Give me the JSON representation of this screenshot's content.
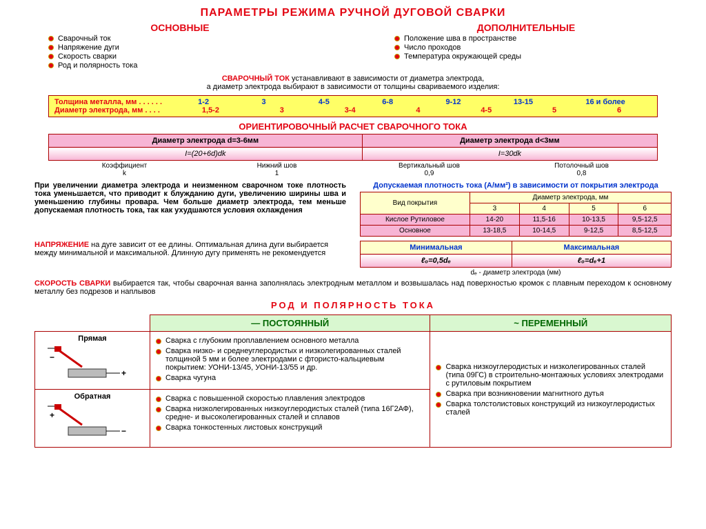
{
  "title": "ПАРАМЕТРЫ РЕЖИМА РУЧНОЙ ДУГОВОЙ СВАРКИ",
  "main": {
    "head": "ОСНОВНЫЕ",
    "items": [
      "Сварочный ток",
      "Напряжение дуги",
      "Скорость сварки",
      "Род и полярность тока"
    ]
  },
  "extra": {
    "head": "ДОПОЛНИТЕЛЬНЫЕ",
    "items": [
      "Положение шва в пространстве",
      "Число проходов",
      "Температура окружающей среды"
    ]
  },
  "intro": {
    "lead": "СВАРОЧНЫЙ ТОК",
    "rest1": " устанавливают в зависимости от диаметра электрода,",
    "rest2": "а диаметр электрода выбирают в зависимости от толщины свариваемого изделия:"
  },
  "yellow": {
    "r1label": "Толщина металла, мм . . . . . .",
    "r1": [
      "1-2",
      "3",
      "4-5",
      "6-8",
      "9-12",
      "13-15",
      "16 и более"
    ],
    "r2label": "Диаметр электрода, мм . . . .",
    "r2": [
      "1,5-2",
      "3",
      "3-4",
      "4",
      "4-5",
      "5",
      "6"
    ]
  },
  "calc_title": "ОРИЕНТИРОВОЧНЫЙ РАСЧЕТ СВАРОЧНОГО ТОКА",
  "pink": {
    "h1": "Диаметр электрода d=3-6мм",
    "h2": "Диаметр электрода d<3мм",
    "f1": "I=(20+6d)dk",
    "f2": "I=30dk"
  },
  "coef": {
    "c1": "Коэффициент\nk",
    "c2": "Нижний шов\n1",
    "c3": "Вертикальный шов\n0,9",
    "c4": "Потолочный шов\n0,8"
  },
  "mid_para": "При увеличении диаметра электрода и неизменном сварочном токе плотность тока уменьшается, что приводит к блужданию дуги, увеличению ширины шва и уменьшению глубины провара. Чем больше диаметр электрода, тем меньше допускаемая плотность тока, так как ухудшаются условия охлаждения",
  "dens": {
    "title": "Допускаемая плотность тока (А/мм²) в зависимости от покрытия электрода",
    "col_head": "Вид покрытия",
    "diam_head": "Диаметр электрода, мм",
    "cols": [
      "3",
      "4",
      "5",
      "6"
    ],
    "rows": [
      {
        "n": "Кислое Рутиловое",
        "v": [
          "14-20",
          "11,5-16",
          "10-13,5",
          "9,5-12,5"
        ]
      },
      {
        "n": "Основное",
        "v": [
          "13-18,5",
          "10-14,5",
          "9-12,5",
          "8,5-12,5"
        ]
      }
    ]
  },
  "volt": {
    "lead": "НАПРЯЖЕНИЕ",
    "text": " на дуге зависит от ее длины. Оптимальная длина дуги выбирается между минимальной и максимальной. Длинную дугу применять не рекомендуется"
  },
  "arc": {
    "h1": "Минимальная",
    "h2": "Максимальная",
    "f1": "ℓₒ=0,5dₑ",
    "f2": "ℓₒ=dₑ+1",
    "note": "dₑ - диаметр электрода (мм)"
  },
  "speed": {
    "lead": "СКОРОСТЬ СВАРКИ",
    "text": " выбирается так, чтобы сварочная ванна заполнялась электродным металлом и возвышалась над поверхностью кромок с плавным переходом к основному металлу без подрезов и наплывов"
  },
  "polarity": {
    "title": "РОД И ПОЛЯРНОСТЬ ТОКА",
    "dc": "— ПОСТОЯННЫЙ",
    "ac": "~ ПЕРЕМЕННЫЙ",
    "direct": "Прямая",
    "reverse": "Обратная",
    "dc_direct": [
      "Сварка с глубоким проплавлением основного металла",
      "Сварка низко- и среднеуглеродистых и низколегированных сталей толщиной 5 мм и более электродами с фтористо-кальциевым покрытием: УОНИ-13/45, УОНИ-13/55 и др.",
      "Сварка чугуна"
    ],
    "dc_reverse": [
      "Сварка с повышенной скоростью плавления электродов",
      "Сварка низколегированных низкоуглеродистых сталей (типа 16Г2АФ), средне- и высоколегированных сталей и сплавов",
      "Сварка тонкостенных листовых конструкций"
    ],
    "ac_items": [
      "Сварка низкоуглеродистых и низколегированных сталей (типа 09ГС) в строительно-монтажных условиях электродами с рутиловым покрытием",
      "Сварка при возникновении магнитного дутья",
      "Сварка толстолистовых конструкций из низкоуглеродистых сталей"
    ]
  }
}
